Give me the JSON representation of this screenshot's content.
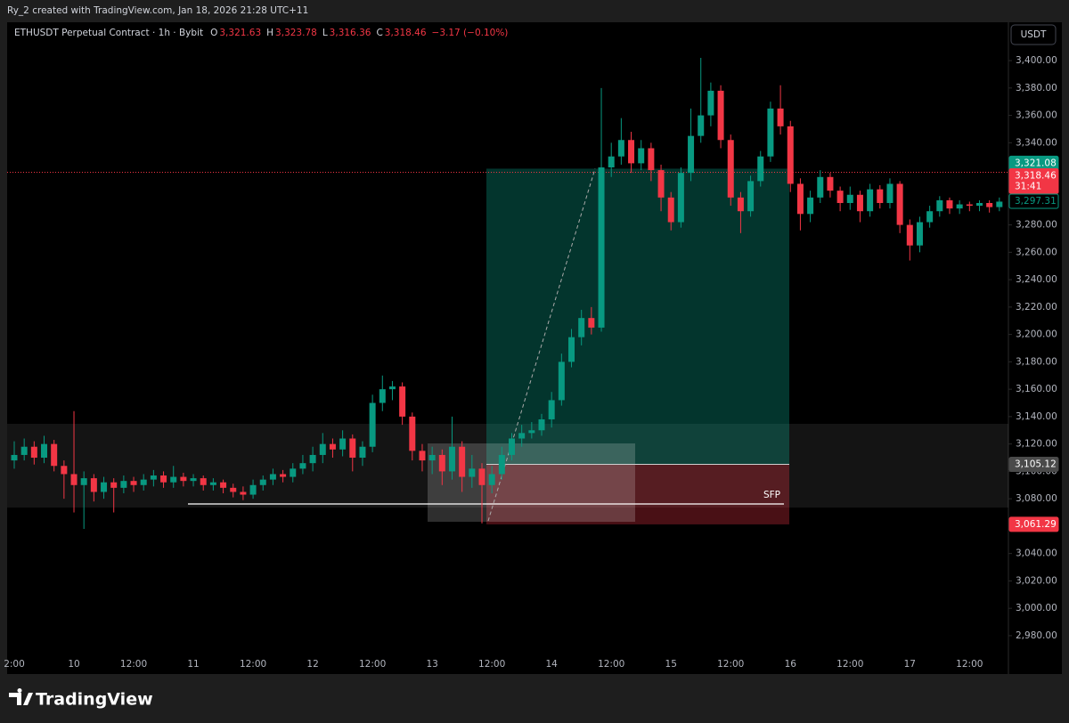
{
  "header": {
    "credit": "Ry_2 created with TradingView.com, Jan 18, 2026 21:28 UTC+11",
    "symbol": "ETHUSDT Perpetual Contract · 1h · Bybit",
    "ohlc": [
      {
        "key": "O",
        "value": "3,321.63"
      },
      {
        "key": "H",
        "value": "3,323.78"
      },
      {
        "key": "L",
        "value": "3,316.36"
      },
      {
        "key": "C",
        "value": "3,318.46"
      }
    ],
    "change": "−3.17 (−0.10%)",
    "currency": "USDT"
  },
  "footer": {
    "brand": "TradingView"
  },
  "chart_data": {
    "type": "candlestick",
    "up_color": "#089981",
    "down_color": "#f23645",
    "categories": [
      "2:00",
      null,
      null,
      null,
      null,
      null,
      "10",
      null,
      null,
      null,
      null,
      null,
      "12:00",
      null,
      null,
      null,
      null,
      null,
      "11",
      null,
      null,
      null,
      null,
      null,
      "12:00",
      null,
      null,
      null,
      null,
      null,
      "12",
      null,
      null,
      null,
      null,
      null,
      "12:00",
      null,
      null,
      null,
      null,
      null,
      "13",
      null,
      null,
      null,
      null,
      null,
      "12:00",
      null,
      null,
      null,
      null,
      null,
      "14",
      null,
      null,
      null,
      null,
      null,
      "12:00",
      null,
      null,
      null,
      null,
      null,
      "15",
      null,
      null,
      null,
      null,
      null,
      "12:00",
      null,
      null,
      null,
      null,
      null,
      "16",
      null,
      null,
      null,
      null,
      null,
      "12:00",
      null,
      null,
      null,
      null,
      null,
      "17",
      null,
      null,
      null,
      null,
      null,
      "12:00",
      null,
      null,
      null
    ],
    "open": [
      3108,
      3112,
      3118,
      3110,
      3120,
      3104,
      3098,
      3090,
      3095,
      3085,
      3092,
      3088,
      3093,
      3090,
      3094,
      3097,
      3092,
      3096,
      3093,
      3095,
      3090,
      3092,
      3088,
      3085,
      3083,
      3090,
      3094,
      3098,
      3096,
      3102,
      3106,
      3112,
      3120,
      3116,
      3124,
      3110,
      3118,
      3150,
      3160,
      3162,
      3140,
      3115,
      3108,
      3112,
      3100,
      3118,
      3096,
      3102,
      3090,
      3098,
      3112,
      3124,
      3128,
      3130,
      3138,
      3152,
      3180,
      3198,
      3212,
      3205,
      3322,
      3330,
      3342,
      3325,
      3336,
      3320,
      3300,
      3282,
      3318,
      3345,
      3360,
      3378,
      3342,
      3300,
      3290,
      3312,
      3330,
      3365,
      3352,
      3310,
      3288,
      3300,
      3315,
      3305,
      3296,
      3302,
      3290,
      3306,
      3296,
      3310,
      3280,
      3265,
      3282,
      3290,
      3298,
      3292,
      3295,
      3294,
      3296,
      3293
    ],
    "high": [
      3122,
      3124,
      3122,
      3126,
      3123,
      3108,
      3144,
      3100,
      3098,
      3096,
      3095,
      3097,
      3096,
      3098,
      3101,
      3100,
      3104,
      3099,
      3098,
      3097,
      3095,
      3094,
      3091,
      3089,
      3094,
      3097,
      3102,
      3101,
      3106,
      3112,
      3118,
      3128,
      3124,
      3130,
      3127,
      3122,
      3156,
      3170,
      3166,
      3165,
      3143,
      3120,
      3118,
      3116,
      3140,
      3122,
      3112,
      3106,
      3104,
      3118,
      3128,
      3134,
      3136,
      3142,
      3158,
      3186,
      3204,
      3218,
      3220,
      3380,
      3340,
      3358,
      3348,
      3342,
      3340,
      3324,
      3304,
      3322,
      3365,
      3402,
      3384,
      3382,
      3346,
      3304,
      3316,
      3334,
      3370,
      3382,
      3356,
      3314,
      3305,
      3320,
      3318,
      3308,
      3308,
      3305,
      3310,
      3309,
      3314,
      3312,
      3284,
      3286,
      3294,
      3301,
      3300,
      3298,
      3297,
      3298,
      3298,
      3300
    ],
    "low": [
      3102,
      3108,
      3105,
      3106,
      3100,
      3080,
      3070,
      3058,
      3078,
      3080,
      3070,
      3084,
      3085,
      3086,
      3089,
      3088,
      3088,
      3089,
      3089,
      3086,
      3086,
      3084,
      3081,
      3079,
      3080,
      3086,
      3090,
      3092,
      3092,
      3098,
      3100,
      3106,
      3110,
      3111,
      3100,
      3104,
      3114,
      3144,
      3152,
      3134,
      3108,
      3100,
      3098,
      3090,
      3094,
      3085,
      3088,
      3062,
      3084,
      3094,
      3108,
      3118,
      3124,
      3126,
      3132,
      3148,
      3176,
      3192,
      3200,
      3202,
      3315,
      3324,
      3318,
      3320,
      3312,
      3290,
      3276,
      3278,
      3312,
      3340,
      3352,
      3336,
      3294,
      3274,
      3286,
      3308,
      3326,
      3346,
      3304,
      3276,
      3282,
      3296,
      3300,
      3290,
      3291,
      3282,
      3286,
      3292,
      3292,
      3274,
      3254,
      3260,
      3278,
      3286,
      3288,
      3288,
      3290,
      3290,
      3289,
      3290
    ],
    "close": [
      3112,
      3118,
      3110,
      3120,
      3104,
      3098,
      3090,
      3095,
      3085,
      3092,
      3088,
      3093,
      3090,
      3094,
      3097,
      3092,
      3096,
      3093,
      3095,
      3090,
      3092,
      3088,
      3085,
      3083,
      3090,
      3094,
      3098,
      3096,
      3102,
      3106,
      3112,
      3120,
      3116,
      3124,
      3110,
      3118,
      3150,
      3160,
      3162,
      3140,
      3115,
      3108,
      3112,
      3100,
      3118,
      3096,
      3102,
      3090,
      3098,
      3112,
      3124,
      3128,
      3130,
      3138,
      3152,
      3180,
      3198,
      3212,
      3205,
      3322,
      3330,
      3342,
      3325,
      3336,
      3320,
      3300,
      3282,
      3318,
      3345,
      3360,
      3378,
      3342,
      3300,
      3290,
      3312,
      3330,
      3365,
      3352,
      3310,
      3288,
      3300,
      3315,
      3305,
      3296,
      3302,
      3290,
      3306,
      3296,
      3310,
      3280,
      3265,
      3282,
      3290,
      3298,
      3292,
      3295,
      3294,
      3296,
      3293,
      3297
    ],
    "ylim": [
      2952,
      3428
    ],
    "yticks": [
      {
        "value": 2980,
        "label": "2,980.00"
      },
      {
        "value": 3000,
        "label": "3,000.00"
      },
      {
        "value": 3020,
        "label": "3,020.00"
      },
      {
        "value": 3040,
        "label": "3,040.00"
      },
      {
        "value": 3060,
        "label": "3,060.00"
      },
      {
        "value": 3080,
        "label": "3,080.00"
      },
      {
        "value": 3100,
        "label": "3,100.00"
      },
      {
        "value": 3120,
        "label": "3,120.00"
      },
      {
        "value": 3140,
        "label": "3,140.00"
      },
      {
        "value": 3160,
        "label": "3,160.00"
      },
      {
        "value": 3180,
        "label": "3,180.00"
      },
      {
        "value": 3200,
        "label": "3,200.00"
      },
      {
        "value": 3220,
        "label": "3,220.00"
      },
      {
        "value": 3240,
        "label": "3,240.00"
      },
      {
        "value": 3260,
        "label": "3,260.00"
      },
      {
        "value": 3280,
        "label": "3,280.00"
      },
      {
        "value": 3300,
        "label": "3,300.00"
      },
      {
        "value": 3320,
        "label": "3,320.00"
      },
      {
        "value": 3340,
        "label": "3,340.00"
      },
      {
        "value": 3360,
        "label": "3,360.00"
      },
      {
        "value": 3380,
        "label": "3,380.00"
      },
      {
        "value": 3400,
        "label": "3,400.00"
      }
    ],
    "price_tags": [
      {
        "value": 3321.08,
        "label": "3,321.08",
        "color": "#089981"
      },
      {
        "value": 3318.46,
        "label": "3,318.46",
        "countdown": "31:41",
        "color": "#f23645"
      },
      {
        "value": 3297.31,
        "label": "3,297.31",
        "color": "#089981",
        "outline": true
      },
      {
        "value": 3105.12,
        "label": "3,105.12",
        "color": "#4a4a4a"
      },
      {
        "value": 3061.29,
        "label": "3,061.29",
        "color": "#f23645"
      }
    ],
    "annotation": "SFP"
  }
}
